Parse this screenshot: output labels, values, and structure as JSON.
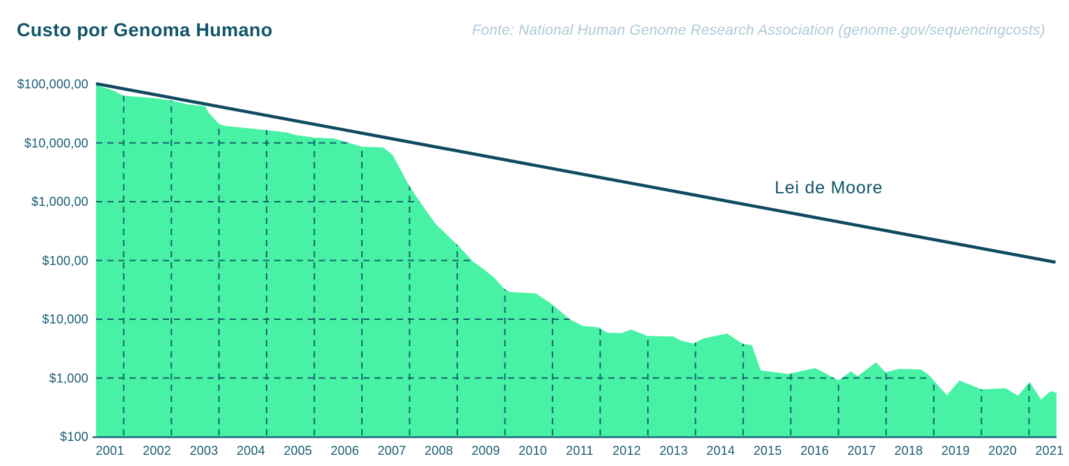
{
  "chart_data": {
    "type": "area",
    "title": "Custo por Genoma Humano",
    "source_note": "Fonte: National Human Genome Research Association (genome.gov/sequencingcosts)",
    "annotation": {
      "label": "Lei de Moore"
    },
    "x_axis": {
      "tick_labels": [
        "2001",
        "2002",
        "2003",
        "2004",
        "2005",
        "2006",
        "2007",
        "2008",
        "2009",
        "2010",
        "2011",
        "2012",
        "2013",
        "2014",
        "2015",
        "2016",
        "2017",
        "2018",
        "2019",
        "2020",
        "2021"
      ]
    },
    "y_axis": {
      "scale": "log",
      "range_usd": [
        100,
        100000000
      ],
      "ticks": [
        {
          "label": "$100,000,00",
          "value": 100000000
        },
        {
          "label": "$10,000,00",
          "value": 10000000
        },
        {
          "label": "$1,000,00",
          "value": 1000000
        },
        {
          "label": "$100,00",
          "value": 100000
        },
        {
          "label": "$10,000",
          "value": 10000
        },
        {
          "label": "$1,000",
          "value": 1000
        },
        {
          "label": "$100",
          "value": 100
        }
      ]
    },
    "colors": {
      "area_fill": "#47F2A4",
      "moore_line": "#0F4A60",
      "grid": "#176271",
      "axis_line": "#1D6B7E",
      "label_text": "#1A5D74",
      "title_text": "#12556A",
      "source_text": "#AECAD6"
    },
    "legend": "none",
    "grid": "dashed, clipped to filled area",
    "series": [
      {
        "name": "Custo por genoma humano (USD)",
        "type": "area",
        "color": "#47F2A4",
        "x_encoding": "f = fraction of time axis (2001 left edge to 2021 right edge)",
        "points": [
          {
            "f": 0.0,
            "usd": 97000000
          },
          {
            "f": 0.018,
            "usd": 78000000
          },
          {
            "f": 0.028,
            "usd": 64000000
          },
          {
            "f": 0.059,
            "usd": 58000000
          },
          {
            "f": 0.078,
            "usd": 53000000
          },
          {
            "f": 0.096,
            "usd": 45000000
          },
          {
            "f": 0.114,
            "usd": 42000000
          },
          {
            "f": 0.117,
            "usd": 33000000
          },
          {
            "f": 0.128,
            "usd": 21000000
          },
          {
            "f": 0.134,
            "usd": 19500000
          },
          {
            "f": 0.178,
            "usd": 16500000
          },
          {
            "f": 0.199,
            "usd": 15000000
          },
          {
            "f": 0.207,
            "usd": 13700000
          },
          {
            "f": 0.227,
            "usd": 12300000
          },
          {
            "f": 0.248,
            "usd": 11900000
          },
          {
            "f": 0.277,
            "usd": 8600000
          },
          {
            "f": 0.299,
            "usd": 8400000
          },
          {
            "f": 0.309,
            "usd": 6200000
          },
          {
            "f": 0.326,
            "usd": 1870000
          },
          {
            "f": 0.337,
            "usd": 1000000
          },
          {
            "f": 0.354,
            "usd": 410000
          },
          {
            "f": 0.376,
            "usd": 186000
          },
          {
            "f": 0.393,
            "usd": 94000
          },
          {
            "f": 0.4,
            "usd": 79000
          },
          {
            "f": 0.414,
            "usd": 52000
          },
          {
            "f": 0.425,
            "usd": 33000
          },
          {
            "f": 0.431,
            "usd": 29000
          },
          {
            "f": 0.458,
            "usd": 27500
          },
          {
            "f": 0.475,
            "usd": 17800
          },
          {
            "f": 0.494,
            "usd": 9800
          },
          {
            "f": 0.507,
            "usd": 7700
          },
          {
            "f": 0.523,
            "usd": 7300
          },
          {
            "f": 0.532,
            "usd": 5900
          },
          {
            "f": 0.547,
            "usd": 5800
          },
          {
            "f": 0.557,
            "usd": 6700
          },
          {
            "f": 0.574,
            "usd": 5200
          },
          {
            "f": 0.601,
            "usd": 5100
          },
          {
            "f": 0.608,
            "usd": 4400
          },
          {
            "f": 0.622,
            "usd": 3850
          },
          {
            "f": 0.632,
            "usd": 4700
          },
          {
            "f": 0.657,
            "usd": 5700
          },
          {
            "f": 0.673,
            "usd": 3850
          },
          {
            "f": 0.683,
            "usd": 3600
          },
          {
            "f": 0.692,
            "usd": 1350
          },
          {
            "f": 0.721,
            "usd": 1170
          },
          {
            "f": 0.749,
            "usd": 1480
          },
          {
            "f": 0.773,
            "usd": 910
          },
          {
            "f": 0.786,
            "usd": 1300
          },
          {
            "f": 0.793,
            "usd": 1070
          },
          {
            "f": 0.812,
            "usd": 1850
          },
          {
            "f": 0.822,
            "usd": 1250
          },
          {
            "f": 0.836,
            "usd": 1430
          },
          {
            "f": 0.859,
            "usd": 1400
          },
          {
            "f": 0.866,
            "usd": 1170
          },
          {
            "f": 0.886,
            "usd": 510
          },
          {
            "f": 0.899,
            "usd": 910
          },
          {
            "f": 0.922,
            "usd": 640
          },
          {
            "f": 0.947,
            "usd": 670
          },
          {
            "f": 0.96,
            "usd": 500
          },
          {
            "f": 0.972,
            "usd": 860
          },
          {
            "f": 0.984,
            "usd": 430
          },
          {
            "f": 0.994,
            "usd": 600
          },
          {
            "f": 1.0,
            "usd": 560
          }
        ]
      },
      {
        "name": "Lei de Moore",
        "type": "line",
        "color": "#0F4A60",
        "points": [
          {
            "f": 0.0,
            "usd": 102000000
          },
          {
            "f": 0.999,
            "usd": 93500
          }
        ]
      }
    ]
  }
}
